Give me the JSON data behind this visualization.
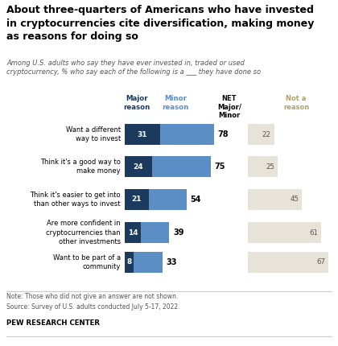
{
  "title": "About three-quarters of Americans who have invested\nin cryptocurrencies cite diversification, making money\nas reasons for doing so",
  "subtitle": "Among U.S. adults who say they have ever invested in, traded or used\ncryptocurrency, % who say each of the following is a ___ they have done so",
  "categories": [
    "Want a different\nway to invest",
    "Think it's a good way to\nmake money",
    "Think it's easier to get into\nthan other ways to invest",
    "Are more confident in\ncryptocurrencies than\nother investments",
    "Want to be part of a\ncommunity"
  ],
  "major_values": [
    31,
    24,
    21,
    14,
    8
  ],
  "minor_values": [
    47,
    51,
    33,
    25,
    25
  ],
  "net_values": [
    78,
    75,
    54,
    39,
    33
  ],
  "not_reason_values": [
    22,
    25,
    45,
    61,
    67
  ],
  "color_major": "#1c3a5e",
  "color_minor": "#5b8ec4",
  "color_not_reason": "#e8e3d8",
  "note": "Note: Those who did not give an answer are not shown.\nSource: Survey of U.S. adults conducted July 5-17, 2022.",
  "footer": "PEW RESEARCH CENTER",
  "col_major_label": "Major\nreason",
  "col_minor_label": "Minor\nreason",
  "col_net_label": "NET\nMajor/\nMinor",
  "col_not_label": "Not a\nreason"
}
